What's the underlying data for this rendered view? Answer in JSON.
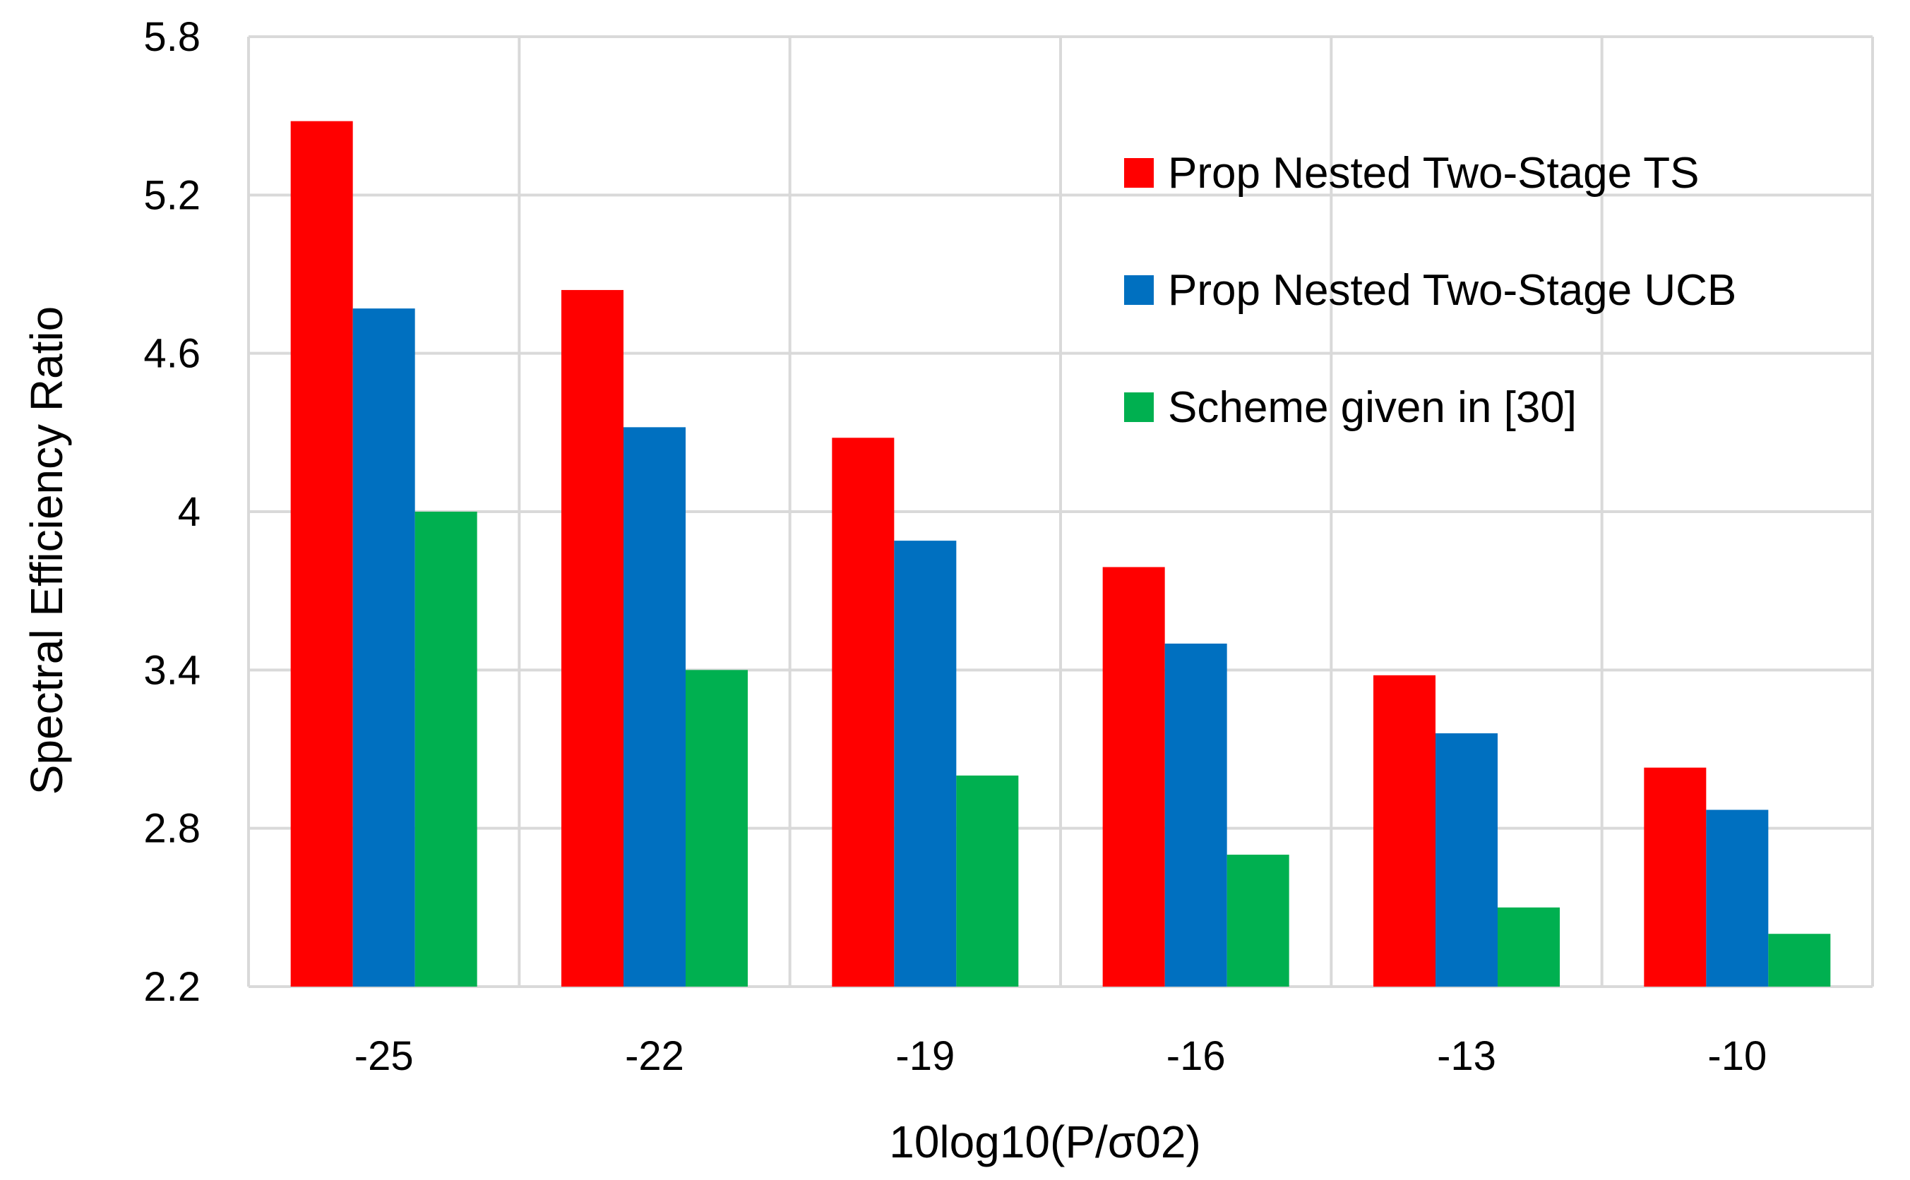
{
  "chart_data": {
    "type": "bar",
    "title": "",
    "xlabel": "10log10(P/σ02)",
    "ylabel": "Spectral Efficiency Ratio",
    "categories": [
      "-25",
      "-22",
      "-19",
      "-16",
      "-13",
      "-10"
    ],
    "ylim": [
      2.2,
      5.8
    ],
    "yticks": [
      2.2,
      2.8,
      3.4,
      4,
      4.6,
      5.2,
      5.8
    ],
    "ytick_labels": [
      "2.2",
      "2.8",
      "3.4",
      "4",
      "4.6",
      "5.2",
      "5.8"
    ],
    "grid": true,
    "legend_position": "top-right",
    "series": [
      {
        "name": "Prop Nested Two-Stage TS",
        "color": "#ff0000",
        "values": [
          5.48,
          4.84,
          4.28,
          3.79,
          3.38,
          3.03
        ]
      },
      {
        "name": "Prop Nested Two-Stage UCB",
        "color": "#0070c0",
        "values": [
          4.77,
          4.32,
          3.89,
          3.5,
          3.16,
          2.87
        ]
      },
      {
        "name": "Scheme given in [30]",
        "color": "#00b050",
        "values": [
          4.0,
          3.4,
          3.0,
          2.7,
          2.5,
          2.4
        ]
      }
    ]
  }
}
